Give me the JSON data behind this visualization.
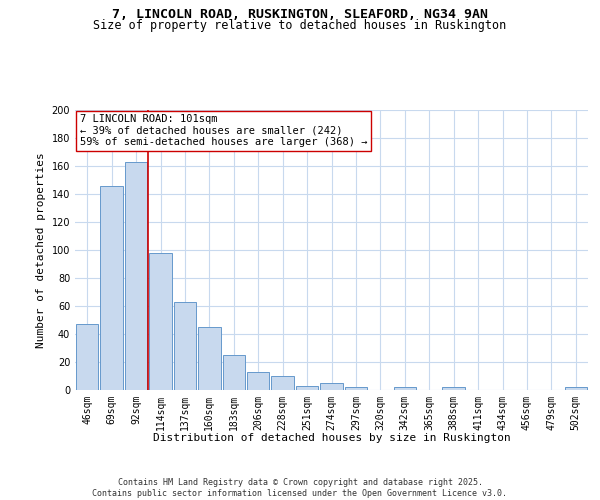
{
  "title_line1": "7, LINCOLN ROAD, RUSKINGTON, SLEAFORD, NG34 9AN",
  "title_line2": "Size of property relative to detached houses in Ruskington",
  "xlabel": "Distribution of detached houses by size in Ruskington",
  "ylabel": "Number of detached properties",
  "categories": [
    "46sqm",
    "69sqm",
    "92sqm",
    "114sqm",
    "137sqm",
    "160sqm",
    "183sqm",
    "206sqm",
    "228sqm",
    "251sqm",
    "274sqm",
    "297sqm",
    "320sqm",
    "342sqm",
    "365sqm",
    "388sqm",
    "411sqm",
    "434sqm",
    "456sqm",
    "479sqm",
    "502sqm"
  ],
  "values": [
    47,
    146,
    163,
    98,
    63,
    45,
    25,
    13,
    10,
    3,
    5,
    2,
    0,
    2,
    0,
    2,
    0,
    0,
    0,
    0,
    2
  ],
  "bar_color": "#c8d9ee",
  "bar_edge_color": "#6699cc",
  "grid_color": "#c8d9ee",
  "background_color": "#ffffff",
  "annotation_line1": "7 LINCOLN ROAD: 101sqm",
  "annotation_line2": "← 39% of detached houses are smaller (242)",
  "annotation_line3": "59% of semi-detached houses are larger (368) →",
  "vline_color": "#cc0000",
  "ylim": [
    0,
    200
  ],
  "yticks": [
    0,
    20,
    40,
    60,
    80,
    100,
    120,
    140,
    160,
    180,
    200
  ],
  "footer_text": "Contains HM Land Registry data © Crown copyright and database right 2025.\nContains public sector information licensed under the Open Government Licence v3.0.",
  "title_fontsize": 9.5,
  "subtitle_fontsize": 8.5,
  "axis_label_fontsize": 8,
  "tick_fontsize": 7,
  "annotation_fontsize": 7.5,
  "footer_fontsize": 6
}
